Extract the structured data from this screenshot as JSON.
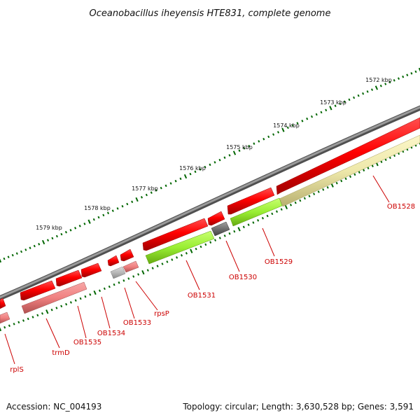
{
  "title": "Oceanobacillus iheyensis HTE831, complete genome",
  "footer": {
    "accession": "Accession: NC_004193",
    "summary": "Topology: circular; Length: 3,630,528 bp; Genes: 3,591"
  },
  "kbp_ticks": [
    "1572 kbp",
    "1573 kbp",
    "1574 kbp",
    "1575 kbp",
    "1576 kbp",
    "1577 kbp",
    "1578 kbp",
    "1579 kbp"
  ],
  "gene_labels": [
    "OB1528",
    "OB1529",
    "OB1530",
    "OB1531",
    "rpsP",
    "OB1533",
    "OB1534",
    "OB1535",
    "trmD",
    "rplS"
  ],
  "colors": {
    "backbone": "#808080",
    "cds_red": "#ff0000",
    "cds_pink": "#f08080",
    "green": "#99ee33",
    "yellow": "#eee8aa",
    "gray_dark": "#606060",
    "gray_light": "#b0b0b0",
    "tick": "#006600",
    "label": "#cc0000"
  }
}
